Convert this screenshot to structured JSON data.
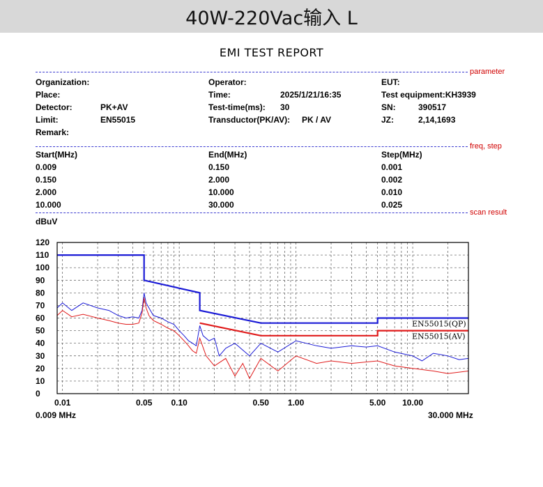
{
  "banner": "40W-220Vac输入 L",
  "report_title": "EMI TEST REPORT",
  "tags": {
    "parameter": "parameter",
    "freq_step": "freq, step",
    "scan_result": "scan result"
  },
  "params": {
    "organization": "Organization:",
    "place": "Place:",
    "detector_label": "Detector:",
    "detector_value": "PK+AV",
    "limit_label": "Limit:",
    "limit_value": "EN55015",
    "remark": "Remark:",
    "operator": "Operator:",
    "time_label": "Time:",
    "time_value": "2025/1/21/16:35",
    "testtime_label": "Test-time(ms):",
    "testtime_value": "30",
    "transductor_label": "Transductor(PK/AV):",
    "transductor_value": "PK  /  AV",
    "eut": "EUT:",
    "test_equipment": "Test equipment:KH3939",
    "sn_label": "SN:",
    "sn_value": "390517",
    "jz_label": "JZ:",
    "jz_value": "2,14,1693"
  },
  "steps": {
    "headers": [
      "Start(MHz)",
      "End(MHz)",
      "Step(MHz)"
    ],
    "rows": [
      [
        "0.009",
        "0.150",
        "0.001"
      ],
      [
        "0.150",
        "2.000",
        "0.002"
      ],
      [
        "2.000",
        "10.000",
        "0.010"
      ],
      [
        "10.000",
        "30.000",
        "0.025"
      ]
    ]
  },
  "chart_data": {
    "type": "line",
    "ylabel": "dBuV",
    "xscale": "log",
    "xlim": [
      0.009,
      30
    ],
    "ylim": [
      0,
      120
    ],
    "grid": true,
    "y_ticks": [
      0,
      10,
      20,
      30,
      40,
      50,
      60,
      70,
      80,
      90,
      100,
      110,
      120
    ],
    "x_ticks": [
      {
        "value": 0.01,
        "label": "0.01"
      },
      {
        "value": 0.05,
        "label": "0.05"
      },
      {
        "value": 0.1,
        "label": "0.10"
      },
      {
        "value": 0.5,
        "label": "0.50"
      },
      {
        "value": 1,
        "label": "1.00"
      },
      {
        "value": 5,
        "label": "5.00"
      },
      {
        "value": 10,
        "label": "10.00"
      }
    ],
    "x_start_label": "0.009 MHz",
    "x_end_label": "30.000 MHz",
    "limits": [
      {
        "name": "EN55015(QP)",
        "color": "#1a1ad6",
        "points": [
          [
            0.009,
            110
          ],
          [
            0.05,
            110
          ],
          [
            0.05,
            90
          ],
          [
            0.15,
            80
          ],
          [
            0.15,
            66
          ],
          [
            0.5,
            56
          ],
          [
            5,
            56
          ],
          [
            5,
            60
          ],
          [
            30,
            60
          ]
        ]
      },
      {
        "name": "EN55015(AV)",
        "color": "#e01a1a",
        "points": [
          [
            0.15,
            56
          ],
          [
            0.5,
            46
          ],
          [
            5,
            46
          ],
          [
            5,
            50
          ],
          [
            30,
            50
          ]
        ]
      }
    ],
    "series": [
      {
        "color": "#1a1ad6",
        "points": [
          [
            0.009,
            68
          ],
          [
            0.01,
            72
          ],
          [
            0.012,
            66
          ],
          [
            0.015,
            72
          ],
          [
            0.02,
            68
          ],
          [
            0.025,
            66
          ],
          [
            0.03,
            62
          ],
          [
            0.035,
            60
          ],
          [
            0.04,
            61
          ],
          [
            0.045,
            60
          ],
          [
            0.048,
            66
          ],
          [
            0.05,
            80
          ],
          [
            0.052,
            72
          ],
          [
            0.055,
            68
          ],
          [
            0.06,
            62
          ],
          [
            0.07,
            60
          ],
          [
            0.08,
            57
          ],
          [
            0.09,
            55
          ],
          [
            0.1,
            50
          ],
          [
            0.11,
            46
          ],
          [
            0.12,
            42
          ],
          [
            0.13,
            40
          ],
          [
            0.14,
            38
          ],
          [
            0.15,
            54
          ],
          [
            0.16,
            46
          ],
          [
            0.18,
            42
          ],
          [
            0.2,
            44
          ],
          [
            0.22,
            30
          ],
          [
            0.25,
            36
          ],
          [
            0.3,
            40
          ],
          [
            0.4,
            30
          ],
          [
            0.5,
            40
          ],
          [
            0.7,
            33
          ],
          [
            1,
            42
          ],
          [
            1.5,
            38
          ],
          [
            2,
            36
          ],
          [
            3,
            38
          ],
          [
            4,
            37
          ],
          [
            5,
            38
          ],
          [
            7,
            33
          ],
          [
            10,
            30
          ],
          [
            12,
            26
          ],
          [
            15,
            32
          ],
          [
            20,
            30
          ],
          [
            25,
            27
          ],
          [
            30,
            28
          ]
        ]
      },
      {
        "color": "#e01a1a",
        "points": [
          [
            0.009,
            62
          ],
          [
            0.01,
            66
          ],
          [
            0.012,
            61
          ],
          [
            0.015,
            63
          ],
          [
            0.02,
            60
          ],
          [
            0.025,
            58
          ],
          [
            0.03,
            56
          ],
          [
            0.035,
            55
          ],
          [
            0.04,
            55
          ],
          [
            0.045,
            56
          ],
          [
            0.048,
            64
          ],
          [
            0.05,
            76
          ],
          [
            0.052,
            68
          ],
          [
            0.055,
            62
          ],
          [
            0.06,
            58
          ],
          [
            0.07,
            55
          ],
          [
            0.08,
            52
          ],
          [
            0.09,
            50
          ],
          [
            0.1,
            46
          ],
          [
            0.11,
            42
          ],
          [
            0.12,
            38
          ],
          [
            0.13,
            34
          ],
          [
            0.14,
            32
          ],
          [
            0.15,
            44
          ],
          [
            0.17,
            30
          ],
          [
            0.2,
            22
          ],
          [
            0.25,
            28
          ],
          [
            0.3,
            14
          ],
          [
            0.35,
            24
          ],
          [
            0.4,
            12
          ],
          [
            0.5,
            28
          ],
          [
            0.7,
            18
          ],
          [
            1,
            30
          ],
          [
            1.5,
            24
          ],
          [
            2,
            26
          ],
          [
            3,
            24
          ],
          [
            5,
            26
          ],
          [
            7,
            22
          ],
          [
            10,
            20
          ],
          [
            15,
            18
          ],
          [
            20,
            16
          ],
          [
            30,
            18
          ]
        ]
      }
    ]
  }
}
